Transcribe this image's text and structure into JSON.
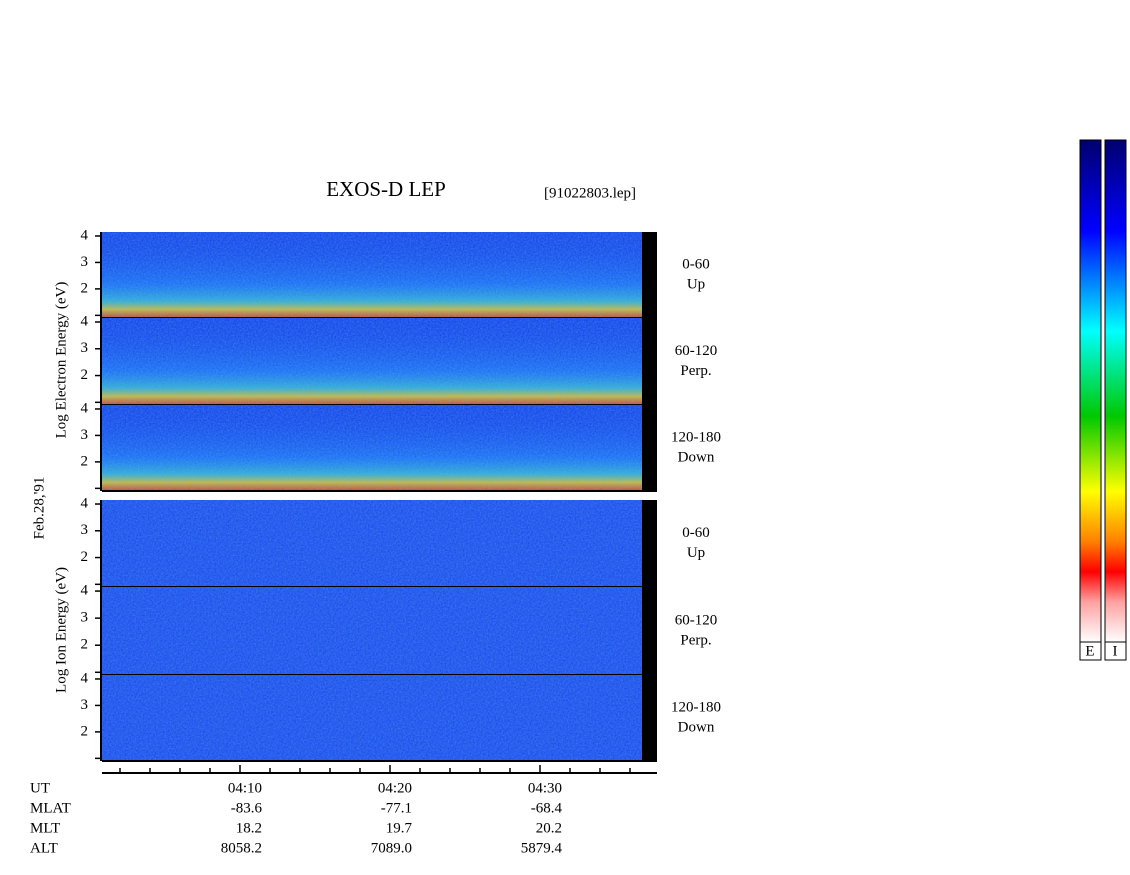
{
  "title": "EXOS-D LEP",
  "file_label": "[91022803.lep]",
  "date_label": "Feb.28,'91",
  "ylabels": [
    "Log  Electron  Energy (eV)",
    "Log  Ion  Energy (eV)"
  ],
  "chart_data": [
    {
      "type": "spectrogram",
      "pitch_angle": [
        "0-60",
        "Up"
      ],
      "ylim": [
        0.9,
        4.15
      ],
      "yticks": [
        2,
        3,
        4
      ],
      "minor_yticks": [
        1
      ]
    },
    {
      "type": "spectrogram",
      "pitch_angle": [
        "60-120",
        "Perp."
      ],
      "ylim": [
        0.9,
        4.15
      ],
      "yticks": [
        2,
        3,
        4
      ],
      "minor_yticks": [
        1
      ]
    },
    {
      "type": "spectrogram",
      "pitch_angle": [
        "120-180",
        "Down"
      ],
      "ylim": [
        0.9,
        4.15
      ],
      "yticks": [
        2,
        3,
        4
      ],
      "minor_yticks": [
        1
      ]
    },
    {
      "type": "spectrogram",
      "pitch_angle": [
        "0-60",
        "Up"
      ],
      "ylim": [
        0.9,
        4.15
      ],
      "yticks": [
        2,
        3,
        4
      ],
      "minor_yticks": [
        1
      ]
    },
    {
      "type": "spectrogram",
      "pitch_angle": [
        "60-120",
        "Perp."
      ],
      "ylim": [
        0.9,
        4.15
      ],
      "yticks": [
        2,
        3,
        4
      ],
      "minor_yticks": [
        1
      ]
    },
    {
      "type": "spectrogram",
      "pitch_angle": [
        "120-180",
        "Down"
      ],
      "ylim": [
        0.9,
        4.15
      ],
      "yticks": [
        2,
        3,
        4
      ],
      "minor_yticks": [
        1
      ]
    }
  ],
  "time_axis": {
    "xlim": [
      0.8,
      37.8
    ],
    "xticks": [
      {
        "value": 10,
        "label": "04:10"
      },
      {
        "value": 20,
        "label": "04:20"
      },
      {
        "value": 30,
        "label": "04:30"
      }
    ],
    "minor_xticks": [
      2,
      4,
      6,
      8,
      12,
      14,
      16,
      18,
      22,
      24,
      26,
      28,
      32,
      34,
      36
    ]
  },
  "ephemeris": {
    "labels": [
      "UT",
      "MLAT",
      "MLT",
      "ALT"
    ],
    "values": [
      [
        "-83.6",
        "-77.1",
        "-68.4"
      ],
      [
        "18.2",
        "19.7",
        "20.2"
      ],
      [
        "8058.2",
        "7089.0",
        "5879.4"
      ]
    ]
  },
  "colorbar_labels": [
    "E",
    "I"
  ]
}
